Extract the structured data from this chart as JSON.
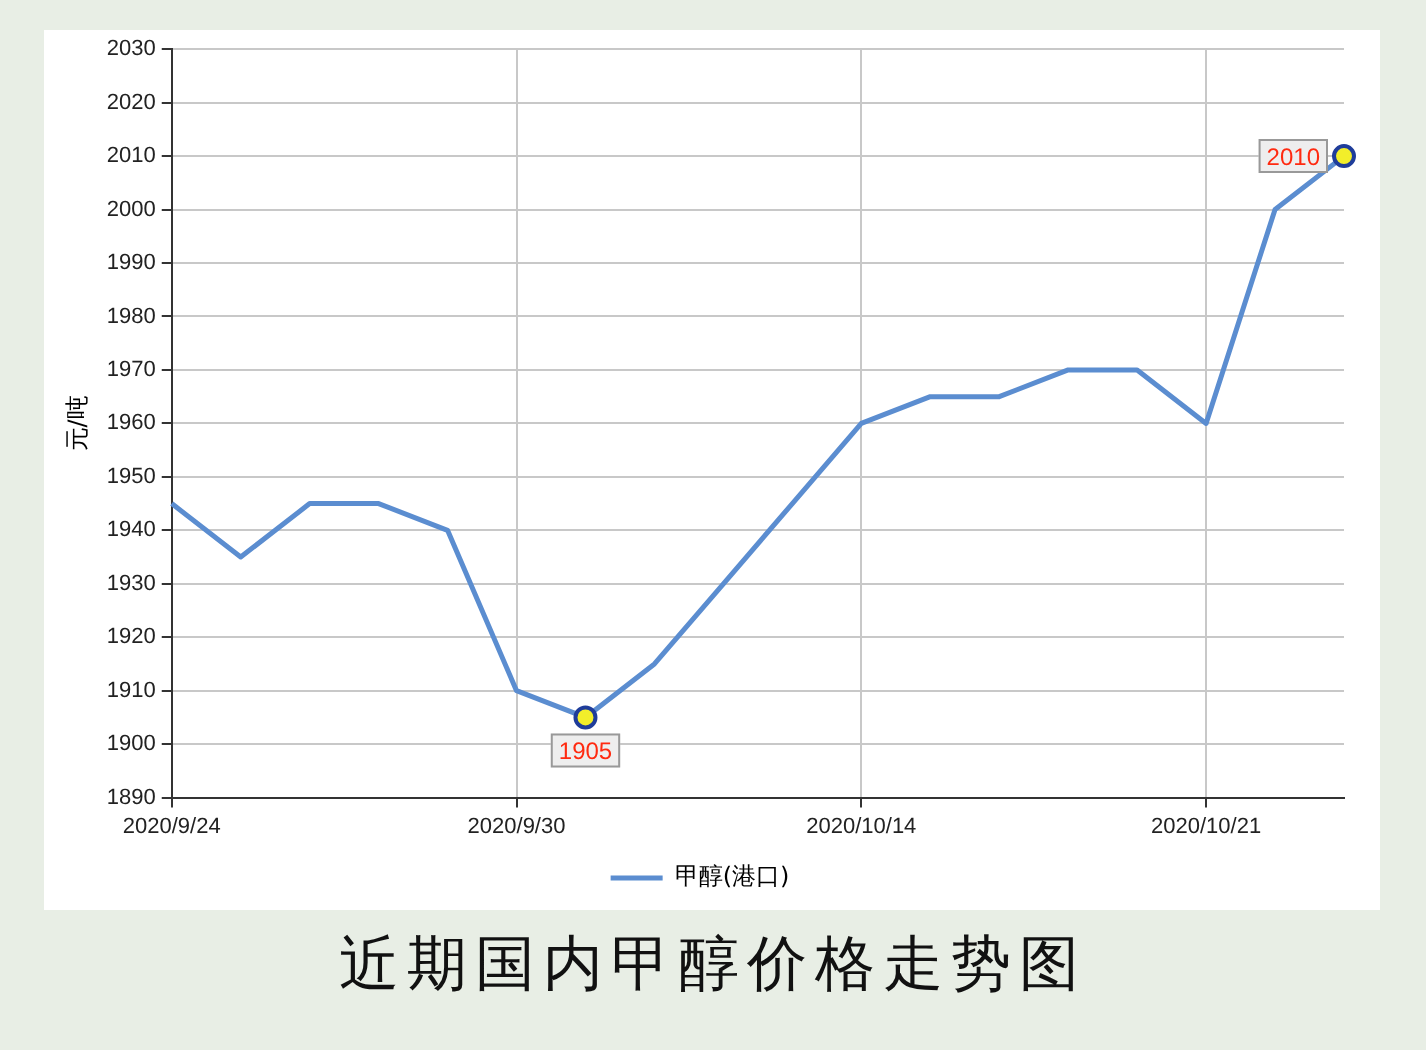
{
  "chart_data": {
    "type": "line",
    "title": "近期国内甲醇价格走势图",
    "ylabel": "元/吨",
    "categories": [
      "2020/9/24",
      null,
      null,
      null,
      null,
      "2020/9/30",
      null,
      null,
      null,
      null,
      "2020/10/14",
      null,
      null,
      null,
      null,
      "2020/10/21",
      null,
      null
    ],
    "series": [
      {
        "name": "甲醇(港口)",
        "color": "#5b8dd0",
        "values": [
          1945,
          1935,
          1945,
          1945,
          1940,
          1910,
          1905,
          1915,
          1930,
          1945,
          1960,
          1965,
          1965,
          1970,
          1970,
          1960,
          2000,
          2010
        ],
        "value_labels": [
          null,
          null,
          null,
          null,
          null,
          null,
          "1905",
          null,
          null,
          null,
          null,
          null,
          null,
          null,
          null,
          null,
          null,
          "2010"
        ]
      }
    ],
    "ylim": [
      1890,
      2030
    ],
    "yticks": [
      1890,
      1900,
      1910,
      1920,
      1930,
      1940,
      1950,
      1960,
      1970,
      1980,
      1990,
      2000,
      2010,
      2020,
      2030
    ],
    "grid": true,
    "legend": "bottom"
  }
}
